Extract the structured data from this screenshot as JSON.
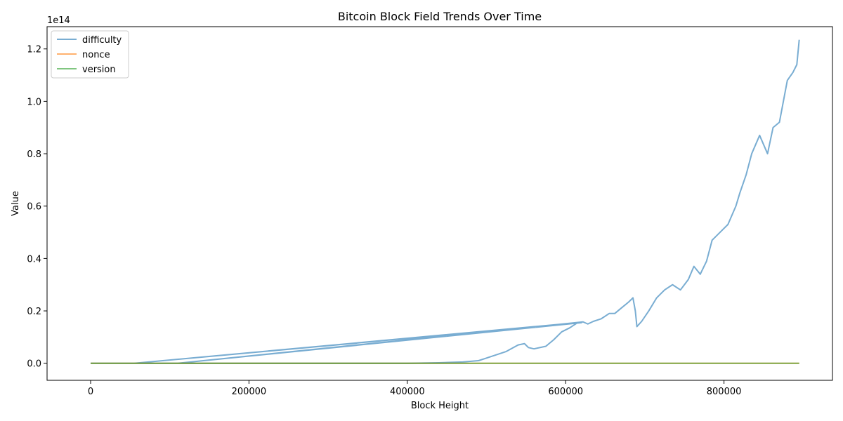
{
  "chart_data": {
    "type": "line",
    "title": "Bitcoin Block Field Trends Over Time",
    "xlabel": "Block Height",
    "ylabel": "Value",
    "y_offset_label": "1e14",
    "xlim": [
      -55000,
      937000
    ],
    "ylim": [
      -0.065,
      1.285
    ],
    "x_ticks": [
      {
        "value": 0,
        "label": "0"
      },
      {
        "value": 200000,
        "label": "200000"
      },
      {
        "value": 400000,
        "label": "400000"
      },
      {
        "value": 600000,
        "label": "600000"
      },
      {
        "value": 800000,
        "label": "800000"
      }
    ],
    "y_ticks": [
      {
        "value": 0.0,
        "label": "0.0"
      },
      {
        "value": 0.2,
        "label": "0.2"
      },
      {
        "value": 0.4,
        "label": "0.4"
      },
      {
        "value": 0.6,
        "label": "0.6"
      },
      {
        "value": 0.8,
        "label": "0.8"
      },
      {
        "value": 1.0,
        "label": "1.0"
      },
      {
        "value": 1.2,
        "label": "1.2"
      }
    ],
    "grid": false,
    "legend_position": "top-left",
    "series": [
      {
        "name": "difficulty",
        "color": "#1f77b4",
        "points": [
          [
            0,
            0
          ],
          [
            60000,
            0
          ],
          [
            120000,
            0.0
          ],
          [
            200000,
            0.0
          ],
          [
            300000,
            0.0
          ],
          [
            400000,
            0.0
          ],
          [
            440000,
            0.002
          ],
          [
            470000,
            0.005
          ],
          [
            490000,
            0.01
          ],
          [
            500000,
            0.02
          ],
          [
            510000,
            0.03
          ],
          [
            525000,
            0.045
          ],
          [
            540000,
            0.07
          ],
          [
            548000,
            0.075
          ],
          [
            553000,
            0.06
          ],
          [
            560000,
            0.055
          ],
          [
            575000,
            0.065
          ],
          [
            585000,
            0.09
          ],
          [
            595000,
            0.12
          ],
          [
            605000,
            0.135
          ],
          [
            615000,
            0.155
          ],
          [
            55000,
            0.0
          ],
          [
            620000,
            0.155
          ],
          [
            110000,
            0.0
          ],
          [
            622000,
            0.158
          ],
          [
            628000,
            0.15
          ],
          [
            635000,
            0.16
          ],
          [
            645000,
            0.17
          ],
          [
            655000,
            0.19
          ],
          [
            662000,
            0.19
          ],
          [
            670000,
            0.21
          ],
          [
            680000,
            0.235
          ],
          [
            685000,
            0.25
          ],
          [
            688000,
            0.2
          ],
          [
            690000,
            0.14
          ],
          [
            696000,
            0.16
          ],
          [
            705000,
            0.2
          ],
          [
            715000,
            0.25
          ],
          [
            725000,
            0.28
          ],
          [
            735000,
            0.3
          ],
          [
            745000,
            0.28
          ],
          [
            755000,
            0.32
          ],
          [
            762000,
            0.37
          ],
          [
            770000,
            0.34
          ],
          [
            778000,
            0.39
          ],
          [
            785000,
            0.47
          ],
          [
            795000,
            0.5
          ],
          [
            805000,
            0.53
          ],
          [
            815000,
            0.6
          ],
          [
            820000,
            0.65
          ],
          [
            828000,
            0.72
          ],
          [
            835000,
            0.8
          ],
          [
            845000,
            0.87
          ],
          [
            855000,
            0.8
          ],
          [
            862000,
            0.9
          ],
          [
            870000,
            0.92
          ],
          [
            880000,
            1.08
          ],
          [
            887000,
            1.11
          ],
          [
            892000,
            1.14
          ],
          [
            895000,
            1.235
          ]
        ]
      },
      {
        "name": "nonce",
        "color": "#ff7f0e",
        "points": [
          [
            0,
            0.0
          ],
          [
            895000,
            0.0
          ]
        ]
      },
      {
        "name": "version",
        "color": "#2ca02c",
        "points": [
          [
            0,
            0.0
          ],
          [
            895000,
            0.0
          ]
        ]
      }
    ]
  }
}
